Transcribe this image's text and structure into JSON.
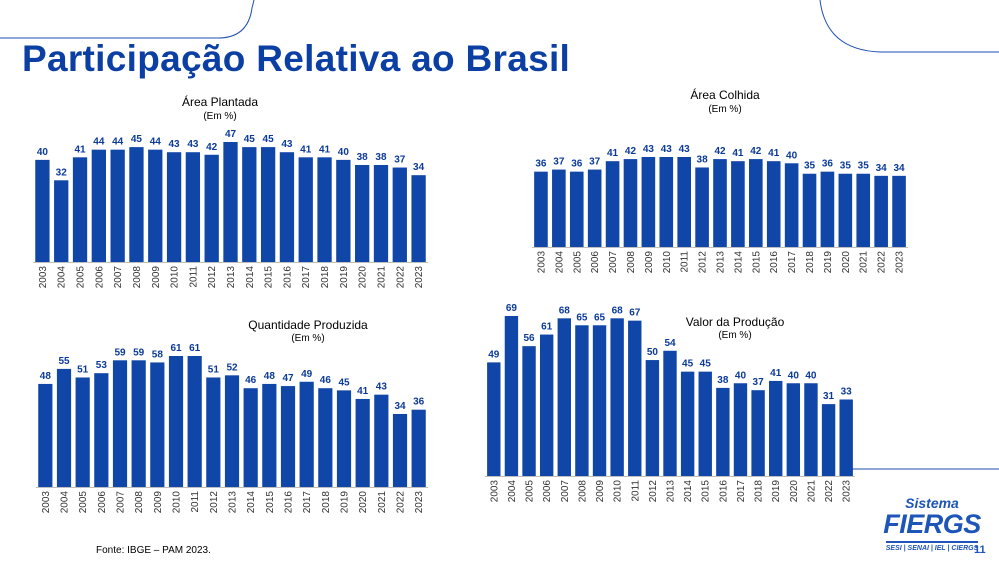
{
  "page": {
    "title": "Participação Relativa ao Brasil",
    "source": "Fonte: IBGE – PAM 2023.",
    "page_number": "11"
  },
  "logo": {
    "line1": "Sistema",
    "line2": "FIERGS",
    "line3": "SESI | SENAI | IEL | CIERGS"
  },
  "colors": {
    "title": "#0b3fa3",
    "bar": "#1046a8",
    "label": "#0b3a99",
    "decoration": "#1d4fb0"
  },
  "chart_data": [
    {
      "id": "area-plantada",
      "type": "bar",
      "title": "Área Plantada",
      "subtitle": "(Em %)",
      "categories": [
        "2003",
        "2004",
        "2005",
        "2006",
        "2007",
        "2008",
        "2009",
        "2010",
        "2011",
        "2012",
        "2013",
        "2014",
        "2015",
        "2016",
        "2017",
        "2018",
        "2019",
        "2020",
        "2021",
        "2022",
        "2023"
      ],
      "values": [
        40,
        32,
        41,
        44,
        44,
        45,
        44,
        43,
        43,
        42,
        47,
        45,
        45,
        43,
        41,
        41,
        40,
        38,
        38,
        37,
        34
      ],
      "grid": false,
      "legend": false
    },
    {
      "id": "area-colhida",
      "type": "bar",
      "title": "Área Colhida",
      "subtitle": "(Em %)",
      "categories": [
        "2003",
        "2004",
        "2005",
        "2006",
        "2007",
        "2008",
        "2009",
        "2010",
        "2011",
        "2012",
        "2013",
        "2014",
        "2015",
        "2016",
        "2017",
        "2018",
        "2019",
        "2020",
        "2021",
        "2022",
        "2023"
      ],
      "values": [
        36,
        37,
        36,
        37,
        41,
        42,
        43,
        43,
        43,
        38,
        42,
        41,
        42,
        41,
        40,
        35,
        36,
        35,
        35,
        34,
        34
      ],
      "grid": false,
      "legend": false
    },
    {
      "id": "quantidade-produzida",
      "type": "bar",
      "title": "Quantidade Produzida",
      "subtitle": "(Em %)",
      "categories": [
        "2003",
        "2004",
        "2005",
        "2006",
        "2007",
        "2008",
        "2009",
        "2010",
        "2011",
        "2012",
        "2013",
        "2014",
        "2015",
        "2016",
        "2017",
        "2018",
        "2019",
        "2020",
        "2021",
        "2022",
        "2023"
      ],
      "values": [
        48,
        55,
        51,
        53,
        59,
        59,
        58,
        61,
        61,
        51,
        52,
        46,
        48,
        47,
        49,
        46,
        45,
        41,
        43,
        34,
        36
      ],
      "grid": false,
      "legend": false
    },
    {
      "id": "valor-producao",
      "type": "bar",
      "title": "Valor da Produção",
      "subtitle": "(Em %)",
      "categories": [
        "2003",
        "2004",
        "2005",
        "2006",
        "2007",
        "2008",
        "2009",
        "2010",
        "2011",
        "2012",
        "2013",
        "2014",
        "2015",
        "2016",
        "2017",
        "2018",
        "2019",
        "2020",
        "2021",
        "2022",
        "2023"
      ],
      "values": [
        49,
        69,
        56,
        61,
        68,
        65,
        65,
        68,
        67,
        50,
        54,
        45,
        45,
        38,
        40,
        37,
        41,
        40,
        40,
        31,
        33
      ],
      "grid": false,
      "legend": false
    }
  ]
}
